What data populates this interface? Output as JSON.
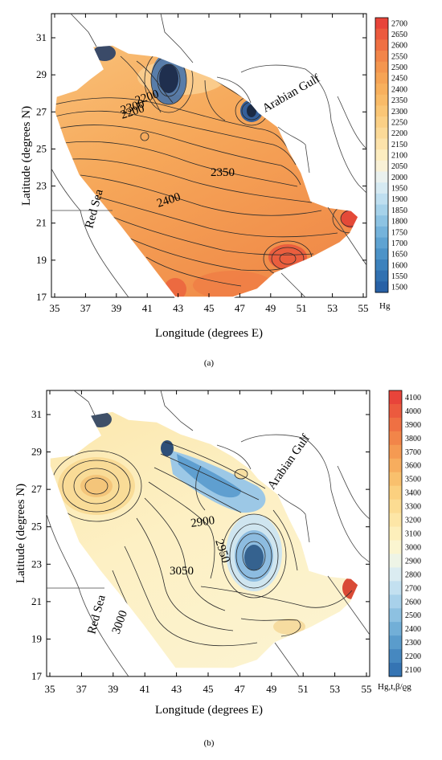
{
  "panels": [
    {
      "id": "a",
      "caption": "(a)",
      "xlabel": "Longitude (degrees E)",
      "ylabel": "Latitude (degrees N)",
      "xticks": [
        "35",
        "37",
        "39",
        "41",
        "43",
        "45",
        "47",
        "49",
        "51",
        "53",
        "55"
      ],
      "yticks": [
        "17",
        "19",
        "21",
        "23",
        "25",
        "27",
        "29",
        "31"
      ],
      "colorbar": {
        "unit": "Hg",
        "labels": [
          "2700",
          "2650",
          "2600",
          "2550",
          "2500",
          "2450",
          "2400",
          "2350",
          "2300",
          "2250",
          "2200",
          "2150",
          "2100",
          "2050",
          "2000",
          "1950",
          "1900",
          "1850",
          "1800",
          "1750",
          "1700",
          "1650",
          "1600",
          "1550",
          "1500"
        ],
        "colors": [
          "#e8443a",
          "#ec5a3e",
          "#ef7043",
          "#f28549",
          "#f4964f",
          "#f6a455",
          "#f8b05d",
          "#f9bb68",
          "#fac676",
          "#fbd086",
          "#fcda98",
          "#fde3ab",
          "#fdedc0",
          "#f9f1d6",
          "#eaf1ee",
          "#d6eaf2",
          "#bfdff0",
          "#a6d2ea",
          "#8dc3e3",
          "#75b3db",
          "#5fa3d2",
          "#4c93c8",
          "#3d82bd",
          "#3171b1",
          "#2861a6"
        ]
      },
      "annotations": [
        {
          "text": "Arabian Gulf",
          "type": "region"
        },
        {
          "text": "Red Sea",
          "type": "region"
        },
        {
          "text": "2350",
          "type": "contour"
        },
        {
          "text": "2400",
          "type": "contour"
        },
        {
          "text": "2300",
          "type": "contour"
        },
        {
          "text": "2200",
          "type": "contour"
        },
        {
          "text": "2200",
          "type": "contour"
        }
      ]
    },
    {
      "id": "b",
      "caption": "(b)",
      "xlabel": "Longitude (degrees E)",
      "ylabel": "Latitude (degrees N)",
      "xticks": [
        "35",
        "37",
        "39",
        "41",
        "43",
        "45",
        "47",
        "49",
        "51",
        "53",
        "55"
      ],
      "yticks": [
        "17",
        "19",
        "21",
        "23",
        "25",
        "27",
        "29",
        "31"
      ],
      "colorbar": {
        "unit": "Hg,t,β/ϱg",
        "labels": [
          "4100",
          "4000",
          "3900",
          "3800",
          "3700",
          "3600",
          "3500",
          "3400",
          "3300",
          "3200",
          "3100",
          "3000",
          "2900",
          "2800",
          "2700",
          "2600",
          "2500",
          "2400",
          "2300",
          "2200",
          "2100"
        ],
        "colors": [
          "#e8443a",
          "#ec5a3e",
          "#ef7043",
          "#f28549",
          "#f59a52",
          "#f7ad5e",
          "#f9c06d",
          "#fbd07f",
          "#fcdc92",
          "#fde6a6",
          "#fdefbb",
          "#fbf5d0",
          "#eef4e6",
          "#dbecf1",
          "#c3e0f0",
          "#a8d1ea",
          "#8dc1e1",
          "#72afd7",
          "#5a9ccc",
          "#4688c0",
          "#3574b3"
        ]
      },
      "annotations": [
        {
          "text": "Arabian Gulf",
          "type": "region"
        },
        {
          "text": "Red Sea",
          "type": "region"
        },
        {
          "text": "2900",
          "type": "contour"
        },
        {
          "text": "2950",
          "type": "contour"
        },
        {
          "text": "3050",
          "type": "contour"
        },
        {
          "text": "3000",
          "type": "contour"
        }
      ]
    }
  ]
}
